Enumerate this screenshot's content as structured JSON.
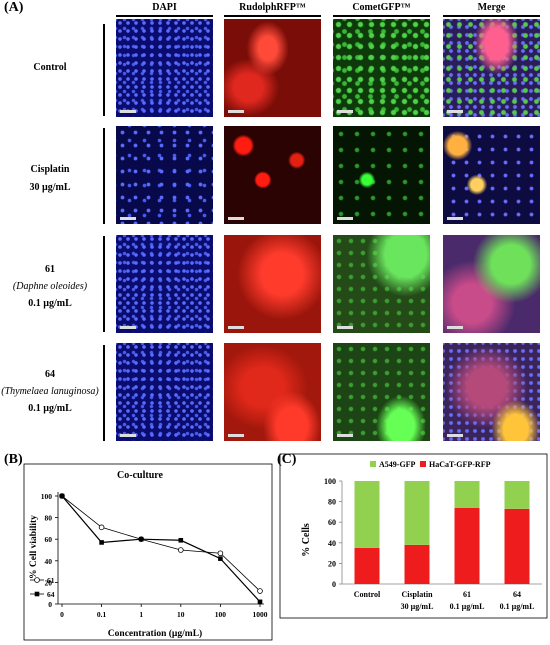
{
  "panel_a": {
    "tag": "(A)",
    "columns": [
      "DAPI",
      "RudolphRFP™",
      "CometGFP™",
      "Merge"
    ],
    "rows": [
      {
        "line1": "Control",
        "line2": "",
        "line3": ""
      },
      {
        "line1": "Cisplatin",
        "line2": "30 µg/mL",
        "line3": ""
      },
      {
        "line1": "61",
        "line2": "(Daphne oleoides)",
        "line3": "0.1 µg/mL"
      },
      {
        "line1": "64",
        "line2": "(Thymelaea lanuginosa)",
        "line3": "0.1 µg/mL"
      }
    ]
  },
  "panel_b": {
    "tag": "(B)",
    "chart_data": {
      "type": "line",
      "title": "Co-culture",
      "xlabel": "Concentration (µg/mL)",
      "ylabel": "% Cell viability",
      "categories": [
        "0",
        "0.1",
        "1",
        "10",
        "100",
        "1000"
      ],
      "ylim": [
        0,
        100
      ],
      "yticks": [
        "0",
        "20",
        "40",
        "60",
        "80",
        "100"
      ],
      "series": [
        {
          "name": "61",
          "marker": "open-circle",
          "values": [
            100,
            71,
            60,
            50,
            47,
            12
          ]
        },
        {
          "name": "64",
          "marker": "filled-square",
          "values": [
            100,
            57,
            60,
            59,
            42,
            2
          ]
        }
      ],
      "legend_position": "bottom-left"
    }
  },
  "panel_c": {
    "tag": "(C)",
    "chart_data": {
      "type": "bar",
      "stacked": true,
      "ylabel": "% Cells",
      "ylim": [
        0,
        100
      ],
      "yticks": [
        "0",
        "20",
        "40",
        "60",
        "80",
        "100"
      ],
      "categories": [
        {
          "line1": "Control",
          "line2": ""
        },
        {
          "line1": "Cisplatin",
          "line2": "30 µg/mL"
        },
        {
          "line1": "61",
          "line2": "0.1 µg/mL"
        },
        {
          "line1": "64",
          "line2": "0.1 µg/mL"
        }
      ],
      "series": [
        {
          "name": "HaCaT-GFP-RFP",
          "color": "#ee1c1c",
          "values": [
            35,
            38,
            74,
            73
          ]
        },
        {
          "name": "A549-GFP",
          "color": "#92d050",
          "values": [
            65,
            62,
            26,
            27
          ]
        }
      ],
      "legend_position": "top"
    }
  }
}
